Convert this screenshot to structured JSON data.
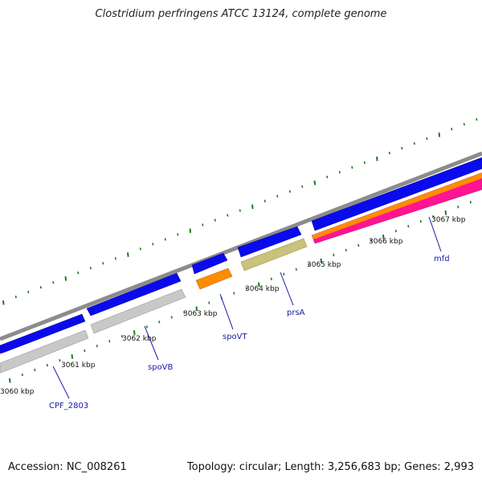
{
  "map": {
    "title": "Clostridium perfringens ATCC 13124, complete genome",
    "accession": "Accession: NC_008261",
    "topology": "Topology: circular; Length: 3,256,683 bp; Genes: 2,993"
  },
  "position_labels": [
    "3060 kbp",
    "3061 kbp",
    "3062 kbp",
    "3063 kbp",
    "3064 kbp",
    "3065 kbp",
    "3066 kbp",
    "3067 kbp"
  ],
  "gene_labels": [
    "CPF_2803",
    "spoVB",
    "spoVT",
    "prsA",
    "mfd"
  ],
  "colors": {
    "backbone": "#8c8c8c",
    "cds": "#0a0aef",
    "gray_feature": "#c0c0c0",
    "orange_feature": "#ff8c00",
    "khaki_feature": "#bdb76b",
    "pink_feature": "#ff1493",
    "tick_color": "#1f7a1f",
    "label_color": "#1a1aa8"
  }
}
